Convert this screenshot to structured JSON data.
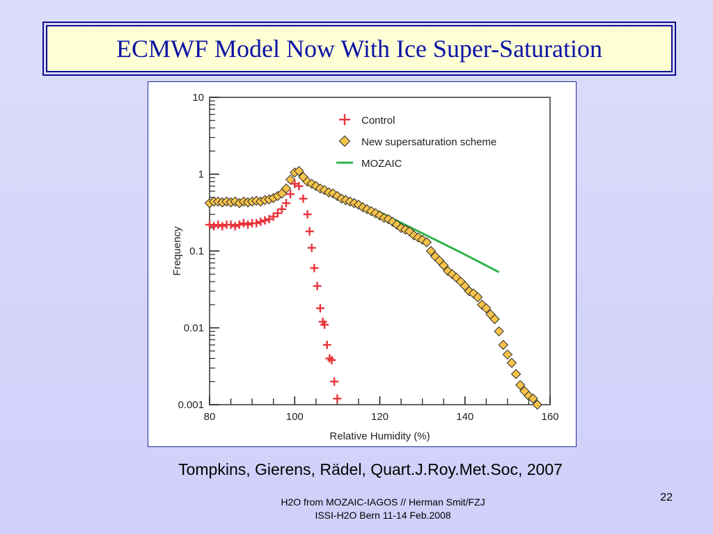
{
  "slide": {
    "title": "ECMWF Model Now With Ice Super-Saturation",
    "citation": "Tompkins, Gierens, Rädel, Quart.J.Roy.Met.Soc, 2007",
    "footer_line1": "H2O from MOZAIC-IAGOS // Herman Smit/FZJ",
    "footer_line2": "ISSI-H2O Bern 11-14 Feb.2008",
    "page_number": "22"
  },
  "colors": {
    "control": "#e8343a",
    "scheme_fill": "#f7c34a",
    "scheme_edge": "#2a2a2a",
    "mozaic": "#2db34a",
    "title_text": "#0b13a5",
    "title_bg": "#ffffd6"
  },
  "chart_data": {
    "type": "scatter",
    "xlabel": "Relative Humidity (%)",
    "ylabel": "Frequency",
    "xlim": [
      80,
      160
    ],
    "ylim": [
      0.001,
      10
    ],
    "yscale": "log",
    "x_ticks": [
      80,
      100,
      120,
      140,
      160
    ],
    "y_ticks": [
      0.001,
      0.01,
      0.1,
      1,
      10
    ],
    "y_tick_labels": [
      "0.001",
      "0.01",
      "0.1",
      "1",
      "10"
    ],
    "legend_position": "top-right",
    "series": [
      {
        "name": "Control",
        "marker": "plus",
        "points": [
          [
            80,
            0.22
          ],
          [
            81,
            0.21
          ],
          [
            82,
            0.22
          ],
          [
            83,
            0.21
          ],
          [
            84,
            0.22
          ],
          [
            85,
            0.22
          ],
          [
            86,
            0.21
          ],
          [
            87,
            0.22
          ],
          [
            88,
            0.23
          ],
          [
            89,
            0.22
          ],
          [
            90,
            0.23
          ],
          [
            91,
            0.23
          ],
          [
            92,
            0.24
          ],
          [
            93,
            0.25
          ],
          [
            94,
            0.26
          ],
          [
            95,
            0.28
          ],
          [
            96,
            0.31
          ],
          [
            97,
            0.35
          ],
          [
            98,
            0.42
          ],
          [
            99,
            0.55
          ],
          [
            100,
            0.75
          ],
          [
            101,
            0.7
          ],
          [
            102,
            0.48
          ],
          [
            103,
            0.3
          ],
          [
            103.5,
            0.18
          ],
          [
            104,
            0.11
          ],
          [
            104.6,
            0.06
          ],
          [
            105.3,
            0.035
          ],
          [
            106,
            0.018
          ],
          [
            106.6,
            0.012
          ],
          [
            107,
            0.011
          ],
          [
            107.6,
            0.006
          ],
          [
            108.2,
            0.004
          ],
          [
            108.7,
            0.0038
          ],
          [
            109.3,
            0.002
          ],
          [
            110,
            0.0012
          ]
        ]
      },
      {
        "name": "New supersaturation scheme",
        "marker": "diamond",
        "points": [
          [
            80,
            0.42
          ],
          [
            81,
            0.44
          ],
          [
            82,
            0.44
          ],
          [
            83,
            0.43
          ],
          [
            84,
            0.44
          ],
          [
            85,
            0.43
          ],
          [
            86,
            0.44
          ],
          [
            87,
            0.42
          ],
          [
            88,
            0.44
          ],
          [
            89,
            0.43
          ],
          [
            90,
            0.44
          ],
          [
            91,
            0.45
          ],
          [
            92,
            0.44
          ],
          [
            93,
            0.46
          ],
          [
            94,
            0.47
          ],
          [
            95,
            0.49
          ],
          [
            96,
            0.52
          ],
          [
            97,
            0.56
          ],
          [
            98,
            0.65
          ],
          [
            99,
            0.85
          ],
          [
            100,
            1.05
          ],
          [
            101,
            1.1
          ],
          [
            102,
            0.92
          ],
          [
            103,
            0.8
          ],
          [
            104,
            0.75
          ],
          [
            105,
            0.7
          ],
          [
            106,
            0.65
          ],
          [
            107,
            0.62
          ],
          [
            108,
            0.58
          ],
          [
            109,
            0.56
          ],
          [
            110,
            0.52
          ],
          [
            111,
            0.48
          ],
          [
            112,
            0.46
          ],
          [
            113,
            0.44
          ],
          [
            114,
            0.42
          ],
          [
            115,
            0.4
          ],
          [
            116,
            0.37
          ],
          [
            117,
            0.35
          ],
          [
            118,
            0.33
          ],
          [
            119,
            0.31
          ],
          [
            120,
            0.29
          ],
          [
            121,
            0.27
          ],
          [
            122,
            0.26
          ],
          [
            123,
            0.24
          ],
          [
            124,
            0.22
          ],
          [
            125,
            0.2
          ],
          [
            126,
            0.19
          ],
          [
            127,
            0.18
          ],
          [
            128,
            0.16
          ],
          [
            129,
            0.15
          ],
          [
            130,
            0.14
          ],
          [
            131,
            0.13
          ],
          [
            132,
            0.1
          ],
          [
            133,
            0.085
          ],
          [
            134,
            0.075
          ],
          [
            135,
            0.065
          ],
          [
            136,
            0.055
          ],
          [
            137,
            0.05
          ],
          [
            138,
            0.045
          ],
          [
            139,
            0.04
          ],
          [
            140,
            0.035
          ],
          [
            141,
            0.03
          ],
          [
            142,
            0.028
          ],
          [
            143,
            0.025
          ],
          [
            144,
            0.02
          ],
          [
            145,
            0.018
          ],
          [
            146,
            0.015
          ],
          [
            147,
            0.013
          ],
          [
            148,
            0.009
          ],
          [
            149,
            0.006
          ],
          [
            150,
            0.0045
          ],
          [
            151,
            0.0035
          ],
          [
            152,
            0.0025
          ],
          [
            153,
            0.0018
          ],
          [
            154,
            0.0015
          ],
          [
            155,
            0.0013
          ],
          [
            156,
            0.0012
          ],
          [
            157,
            0.001
          ]
        ]
      },
      {
        "name": "MOZAIC",
        "marker": "line",
        "points": [
          [
            101,
            0.95
          ],
          [
            110,
            0.55
          ],
          [
            120,
            0.32
          ],
          [
            130,
            0.17
          ],
          [
            140,
            0.09
          ],
          [
            148,
            0.053
          ]
        ]
      }
    ]
  }
}
